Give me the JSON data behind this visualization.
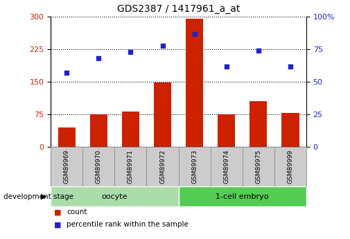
{
  "title": "GDS2387 / 1417961_a_at",
  "samples": [
    "GSM89969",
    "GSM89970",
    "GSM89971",
    "GSM89972",
    "GSM89973",
    "GSM89974",
    "GSM89975",
    "GSM89999"
  ],
  "counts": [
    45,
    75,
    82,
    148,
    295,
    75,
    105,
    78
  ],
  "percentiles": [
    57,
    68,
    73,
    78,
    87,
    62,
    74,
    62
  ],
  "bar_color": "#cc2200",
  "dot_color": "#2222cc",
  "left_ylim": [
    0,
    300
  ],
  "right_ylim": [
    0,
    100
  ],
  "left_yticks": [
    0,
    75,
    150,
    225,
    300
  ],
  "right_yticks": [
    0,
    25,
    50,
    75,
    100
  ],
  "groups": [
    {
      "label": "oocyte",
      "start": 0,
      "end": 4,
      "color": "#aaddaa"
    },
    {
      "label": "1-cell embryo",
      "start": 4,
      "end": 8,
      "color": "#55cc55"
    }
  ],
  "group_label": "development stage",
  "legend_items": [
    {
      "label": "count",
      "color": "#cc2200"
    },
    {
      "label": "percentile rank within the sample",
      "color": "#2222cc"
    }
  ],
  "grid_color": "black",
  "bg_color": "#ffffff",
  "plot_bg": "#ffffff",
  "title_fontsize": 10,
  "tick_fontsize": 8,
  "sample_box_color": "#cccccc",
  "sample_box_border": "#888888"
}
